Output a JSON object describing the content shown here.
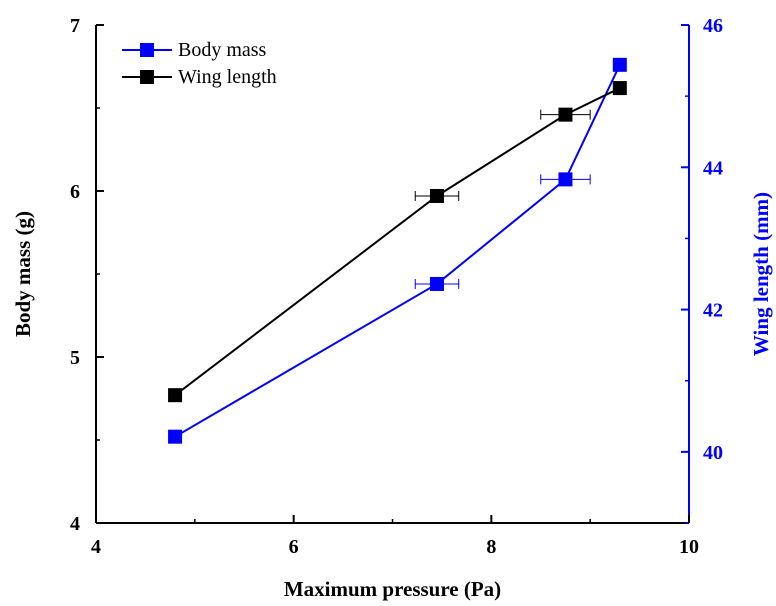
{
  "colors": {
    "left_axis": "#000000",
    "right_axis": "#0000ff",
    "body_mass": "#0000ff",
    "wing_length": "#000000"
  },
  "chart_data": {
    "type": "line",
    "title": "",
    "xlabel": "Maximum pressure (Pa)",
    "ylabel_left": "Body mass (g)",
    "ylabel_right": "Wing length (mm)",
    "xlim": [
      4,
      10
    ],
    "ylim_left": [
      4,
      7
    ],
    "ylim_right": [
      39,
      46
    ],
    "x_ticks": [
      4,
      6,
      8,
      10
    ],
    "y_left_ticks": [
      4,
      5,
      6,
      7
    ],
    "y_right_ticks": [
      40,
      42,
      44,
      46
    ],
    "legend_position": "top-left",
    "grid": false,
    "series": [
      {
        "name": "Body mass",
        "axis": "left",
        "color": "#0000ff",
        "marker": "square",
        "x": [
          4.8,
          7.45,
          8.75,
          9.3
        ],
        "y": [
          4.52,
          5.44,
          6.07,
          6.76
        ],
        "x_error": [
          0,
          0.22,
          0.25,
          0
        ]
      },
      {
        "name": "Wing length",
        "axis": "left",
        "color": "#000000",
        "marker": "square",
        "x": [
          4.8,
          7.45,
          8.75,
          9.3
        ],
        "y": [
          4.77,
          5.97,
          6.46,
          6.62
        ],
        "x_error": [
          0,
          0.22,
          0.25,
          0
        ]
      }
    ]
  }
}
